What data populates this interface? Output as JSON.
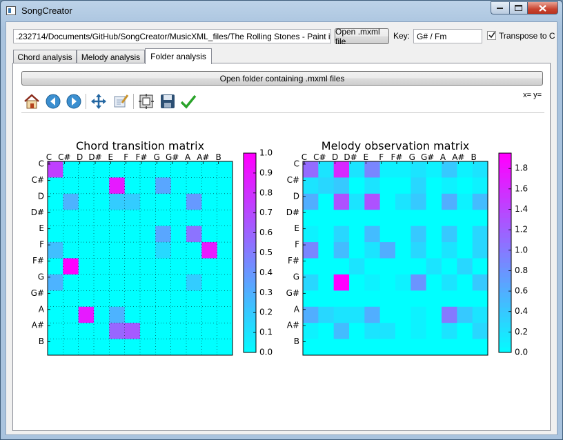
{
  "window": {
    "title": "SongCreator"
  },
  "top": {
    "path_value": ".232714/Documents/GitHub/SongCreator/MusicXML_files/The Rolling Stones - Paint it black.mxl",
    "open_button": "Open .mxml file",
    "key_label": "Key:",
    "key_value": "G# / Fm",
    "transpose_label": "Transpose to C",
    "transpose_checked": true
  },
  "tabs": [
    {
      "label": "Chord analysis",
      "active": false
    },
    {
      "label": "Melody analysis",
      "active": false
    },
    {
      "label": "Folder analysis",
      "active": true
    }
  ],
  "folder": {
    "open_folder_button": "Open folder containing .mxml files",
    "coords_readout": "x= y="
  },
  "toolbar_icons": [
    "home-icon",
    "back-arrow-icon",
    "forward-arrow-icon",
    "pan-icon",
    "zoom-icon",
    "subplots-icon",
    "save-icon",
    "check-icon"
  ],
  "colors": {
    "cmap_low": "#00ffff",
    "cmap_high": "#ff00ff"
  },
  "chart_data": [
    {
      "type": "heatmap",
      "title": "Chord transition matrix",
      "x_labels": [
        "C",
        "C#",
        "D",
        "D#",
        "E",
        "F",
        "F#",
        "G",
        "G#",
        "A",
        "A#",
        "B"
      ],
      "y_labels": [
        "C",
        "C#",
        "D",
        "D#",
        "E",
        "F",
        "F#",
        "G",
        "G#",
        "A",
        "A#",
        "B"
      ],
      "grid": true,
      "colorbar": {
        "min": 0.0,
        "max": 1.0,
        "ticks": [
          "0.0",
          "0.1",
          "0.2",
          "0.3",
          "0.4",
          "0.5",
          "0.6",
          "0.7",
          "0.8",
          "0.9",
          "1.0"
        ]
      },
      "matrix": [
        [
          0.75,
          0,
          0,
          0,
          0,
          0,
          0,
          0,
          0,
          0,
          0,
          0
        ],
        [
          0,
          0,
          0,
          0,
          0.9,
          0,
          0,
          0.35,
          0,
          0,
          0,
          0
        ],
        [
          0,
          0.3,
          0,
          0,
          0.2,
          0.2,
          0,
          0,
          0,
          0.4,
          0,
          0
        ],
        [
          0,
          0,
          0,
          0,
          0,
          0,
          0,
          0,
          0,
          0,
          0,
          0
        ],
        [
          0,
          0,
          0,
          0,
          0,
          0,
          0,
          0.35,
          0,
          0.55,
          0,
          0
        ],
        [
          0.25,
          0,
          0,
          0,
          0,
          0,
          0,
          0.15,
          0,
          0,
          0.9,
          0
        ],
        [
          0,
          1.0,
          0,
          0,
          0,
          0,
          0,
          0,
          0,
          0,
          0,
          0
        ],
        [
          0.3,
          0,
          0,
          0,
          0,
          0,
          0,
          0,
          0,
          0.2,
          0,
          0
        ],
        [
          0,
          0,
          0,
          0,
          0,
          0,
          0,
          0,
          0,
          0,
          0,
          0
        ],
        [
          0,
          0,
          0.9,
          0,
          0.3,
          0,
          0,
          0,
          0,
          0,
          0,
          0
        ],
        [
          0,
          0,
          0,
          0,
          0.6,
          0.65,
          0,
          0,
          0,
          0,
          0,
          0
        ],
        [
          0,
          0,
          0,
          0,
          0,
          0,
          0,
          0,
          0,
          0,
          0,
          0
        ]
      ]
    },
    {
      "type": "heatmap",
      "title": "Melody observation matrix",
      "x_labels": [
        "C",
        "C#",
        "D",
        "D#",
        "E",
        "F",
        "F#",
        "G",
        "G#",
        "A",
        "A#",
        "B"
      ],
      "y_labels": [
        "C",
        "C#",
        "D",
        "D#",
        "E",
        "F",
        "F#",
        "G",
        "G#",
        "A",
        "A#",
        "B"
      ],
      "colorbar": {
        "min": 0.0,
        "max": 1.9,
        "ticks": [
          "0.0",
          "0.2",
          "0.4",
          "0.6",
          "0.8",
          "1.0",
          "1.2",
          "1.4",
          "1.6",
          "1.8"
        ]
      },
      "matrix": [
        [
          1.1,
          0.2,
          1.6,
          0.2,
          0.9,
          0.1,
          0.1,
          0.2,
          0.1,
          0.4,
          0.1,
          0.2
        ],
        [
          0.2,
          0.3,
          0.4,
          0,
          0.2,
          0,
          0,
          0.3,
          0,
          0.1,
          0,
          0.1
        ],
        [
          0.6,
          0,
          1.3,
          0.2,
          1.3,
          0,
          0.2,
          0.4,
          0,
          0.6,
          0.1,
          0.5
        ],
        [
          0,
          0,
          0,
          0,
          0,
          0,
          0,
          0,
          0,
          0,
          0,
          0
        ],
        [
          0.1,
          0,
          0.3,
          0,
          0.5,
          0,
          0,
          0.4,
          0,
          0.4,
          0,
          0.3
        ],
        [
          0.9,
          0,
          0.5,
          0,
          0.2,
          0.6,
          0,
          0.3,
          0,
          0.2,
          0,
          0.3
        ],
        [
          0,
          0,
          0,
          0.2,
          0,
          0,
          0,
          0,
          0.2,
          0,
          0.3,
          0
        ],
        [
          0.3,
          0,
          1.9,
          0,
          0.1,
          0,
          0.1,
          0.8,
          0,
          0.2,
          0,
          0.4
        ],
        [
          0,
          0,
          0,
          0,
          0,
          0,
          0,
          0,
          0,
          0,
          0,
          0
        ],
        [
          0.6,
          0.3,
          0.2,
          0.2,
          0.6,
          0,
          0,
          0.1,
          0,
          1.0,
          0.4,
          0.2
        ],
        [
          0.1,
          0,
          0.5,
          0,
          0.2,
          0.2,
          0,
          0.1,
          0,
          0.2,
          0,
          0.3
        ],
        [
          0,
          0,
          0,
          0,
          0,
          0,
          0,
          0,
          0,
          0,
          0,
          0
        ]
      ]
    }
  ]
}
